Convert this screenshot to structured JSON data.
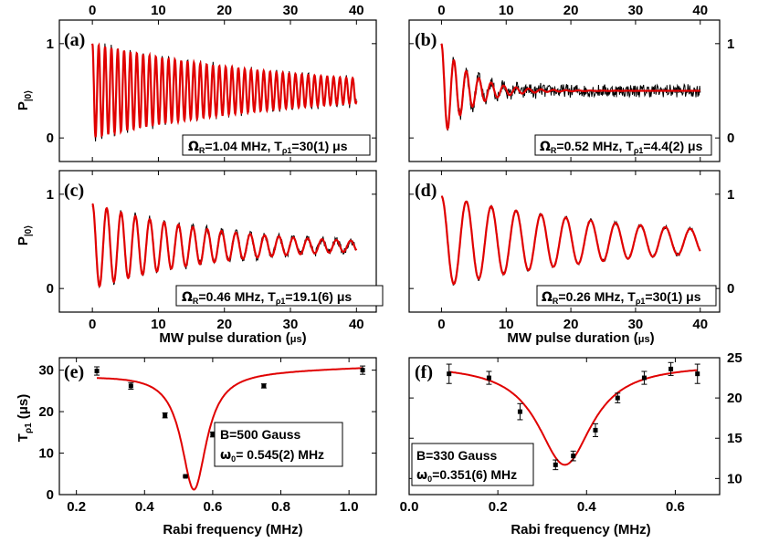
{
  "x_axis_shared": {
    "ticks": [
      "0",
      "10",
      "20",
      "30",
      "40"
    ],
    "tick_values": [
      0,
      10,
      20,
      30,
      40
    ],
    "range": [
      -5,
      43
    ],
    "label_main": "MW pulse duration (",
    "label_unit": "μs",
    "label_end": ")"
  },
  "y_label_top": {
    "main": "P",
    "sub": "|0⟩"
  },
  "y_label_bottom": {
    "main": "T",
    "sub": "ρ1",
    "unit": "(μs)"
  },
  "panels": [
    {
      "id": "a",
      "label": "(a)",
      "annotation": {
        "omega_sym": "Ω",
        "omega_sub": "R",
        "omega_val": "=1.04 MHz, T",
        "t_sub": "ρ1",
        "t_val": "=30(1) μs"
      }
    },
    {
      "id": "b",
      "label": "(b)",
      "annotation": {
        "omega_sym": "Ω",
        "omega_sub": "R",
        "omega_val": "=0.52 MHz, T",
        "t_sub": "ρ1",
        "t_val": "=4.4(2) μs"
      }
    },
    {
      "id": "c",
      "label": "(c)",
      "annotation": {
        "omega_sym": "Ω",
        "omega_sub": "R",
        "omega_val": "=0.46 MHz, T",
        "t_sub": "ρ1",
        "t_val": "=19.1(6) μs"
      }
    },
    {
      "id": "d",
      "label": "(d)",
      "annotation": {
        "omega_sym": "Ω",
        "omega_sub": "R",
        "omega_val": "=0.26 MHz, T",
        "t_sub": "ρ1",
        "t_val": "=30(1) μs"
      }
    },
    {
      "id": "e",
      "label": "(e)",
      "annotation": {
        "line1": "B=500 Gauss",
        "omega_sym": "ω",
        "omega_sub": "0",
        "line2_val": "= 0.545(2) MHz"
      }
    },
    {
      "id": "f",
      "label": "(f)",
      "annotation": {
        "line1": "B=330 Gauss",
        "omega_sym": "ω",
        "omega_sub": "0",
        "line2_val": "=0.351(6) MHz"
      }
    }
  ],
  "chart_data": [
    {
      "panel": "a",
      "type": "line",
      "xlim": [
        -5,
        43
      ],
      "ylim": [
        -0.25,
        1.25
      ],
      "y_ticks": [
        "0",
        "1"
      ],
      "y_tick_values": [
        0,
        1
      ],
      "y_axis_side": "left",
      "x_ticks_top": [
        "0",
        "10",
        "20",
        "30",
        "40"
      ],
      "series": [
        {
          "role": "data",
          "color": "#000000",
          "model": {
            "rabi_mhz": 1.04,
            "decay_us": 30,
            "amplitude": 0.5,
            "offset": 0.5,
            "noise": 0.05
          }
        },
        {
          "role": "fit",
          "color": "#e00000",
          "model": {
            "rabi_mhz": 1.04,
            "decay_us": 30,
            "amplitude": 0.5,
            "offset": 0.5
          }
        }
      ],
      "x_range": [
        0,
        40
      ]
    },
    {
      "panel": "b",
      "type": "line",
      "xlim": [
        -5,
        43
      ],
      "ylim": [
        -0.25,
        1.25
      ],
      "y_ticks": [
        "0",
        "1"
      ],
      "y_tick_values": [
        0,
        1
      ],
      "y_axis_side": "right",
      "x_ticks_top": [
        "0",
        "10",
        "20",
        "30",
        "40"
      ],
      "series": [
        {
          "role": "data",
          "color": "#000000",
          "model": {
            "rabi_mhz": 0.52,
            "decay_us": 4.4,
            "amplitude": 0.5,
            "offset": 0.5,
            "noise": 0.07
          }
        },
        {
          "role": "fit",
          "color": "#e00000",
          "model": {
            "rabi_mhz": 0.52,
            "decay_us": 4.4,
            "amplitude": 0.5,
            "offset": 0.5
          }
        }
      ],
      "x_range": [
        0,
        40
      ]
    },
    {
      "panel": "c",
      "type": "line",
      "xlim": [
        -5,
        43
      ],
      "ylim": [
        -0.25,
        1.25
      ],
      "y_ticks": [
        "0",
        "1"
      ],
      "y_tick_values": [
        0,
        1
      ],
      "y_axis_side": "left",
      "x_ticks_bottom": [
        "0",
        "10",
        "20",
        "30",
        "40"
      ],
      "series": [
        {
          "role": "data",
          "color": "#000000",
          "model": {
            "rabi_mhz": 0.46,
            "decay_us": 19.1,
            "amplitude": 0.45,
            "offset": 0.45,
            "noise": 0.04
          }
        },
        {
          "role": "fit",
          "color": "#e00000",
          "model": {
            "rabi_mhz": 0.46,
            "decay_us": 19.1,
            "amplitude": 0.45,
            "offset": 0.45
          }
        }
      ],
      "x_range": [
        0,
        40
      ]
    },
    {
      "panel": "d",
      "type": "line",
      "xlim": [
        -5,
        43
      ],
      "ylim": [
        -0.25,
        1.25
      ],
      "y_ticks": [
        "0",
        "1"
      ],
      "y_tick_values": [
        0,
        1
      ],
      "y_axis_side": "right",
      "x_ticks_bottom": [
        "0",
        "10",
        "20",
        "30",
        "40"
      ],
      "series": [
        {
          "role": "data",
          "color": "#000000",
          "model": {
            "rabi_mhz": 0.26,
            "decay_us": 30,
            "amplitude": 0.48,
            "offset": 0.5,
            "noise": 0.02
          }
        },
        {
          "role": "fit",
          "color": "#e00000",
          "model": {
            "rabi_mhz": 0.26,
            "decay_us": 30,
            "amplitude": 0.48,
            "offset": 0.5
          }
        }
      ],
      "x_range": [
        0,
        40
      ]
    },
    {
      "panel": "e",
      "type": "scatter",
      "xlim": [
        0.15,
        1.08
      ],
      "ylim": [
        0,
        33
      ],
      "x_ticks": [
        "0.2",
        "0.4",
        "0.6",
        "0.8",
        "1.0"
      ],
      "x_tick_values": [
        0.2,
        0.4,
        0.6,
        0.8,
        1.0
      ],
      "y_ticks": [
        "0",
        "10",
        "20",
        "30"
      ],
      "y_tick_values": [
        0,
        10,
        20,
        30
      ],
      "y_axis_side": "left",
      "xlabel": "Rabi frequency (MHz)",
      "x": [
        0.26,
        0.36,
        0.46,
        0.52,
        0.6,
        0.75,
        1.04
      ],
      "y": [
        29.8,
        26.2,
        19.1,
        4.4,
        14.5,
        26.2,
        30.0
      ],
      "err": [
        1.0,
        0.8,
        0.6,
        0.2,
        0.6,
        0.5,
        1.0
      ],
      "fit": {
        "color": "#e00000",
        "omega0": 0.545,
        "width": 0.045,
        "base": 29.5,
        "depth": 28.3,
        "tilt": 2.5
      }
    },
    {
      "panel": "f",
      "type": "scatter",
      "xlim": [
        0.0,
        0.7
      ],
      "ylim": [
        8,
        25
      ],
      "x_ticks": [
        "0.0",
        "0.2",
        "0.4",
        "0.6"
      ],
      "x_tick_values": [
        0.0,
        0.2,
        0.4,
        0.6
      ],
      "y_ticks": [
        "10",
        "15",
        "20",
        "25"
      ],
      "y_tick_values": [
        10,
        15,
        20,
        25
      ],
      "y_axis_side": "right",
      "xlabel": "Rabi frequency (MHz)",
      "x": [
        0.09,
        0.18,
        0.25,
        0.33,
        0.37,
        0.42,
        0.47,
        0.53,
        0.59,
        0.65
      ],
      "y": [
        23.0,
        22.5,
        18.3,
        11.7,
        12.8,
        16.0,
        20.0,
        22.5,
        23.6,
        23.0
      ],
      "err": [
        1.2,
        0.8,
        1.0,
        0.6,
        0.6,
        0.8,
        0.6,
        0.8,
        0.8,
        1.2
      ],
      "fit": {
        "color": "#e00000",
        "omega0": 0.351,
        "width": 0.075,
        "base": 24.2,
        "depth": 12.5,
        "tilt": 0
      }
    }
  ]
}
